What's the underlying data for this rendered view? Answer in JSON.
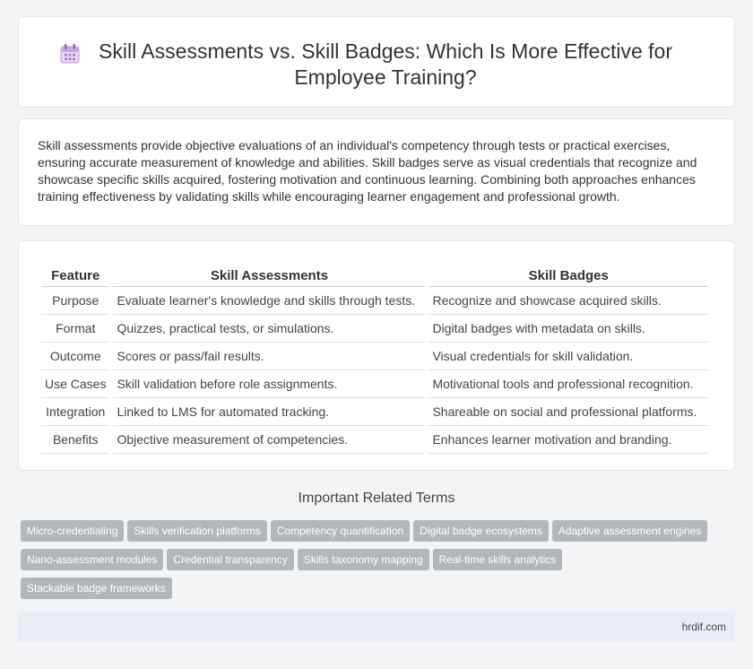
{
  "header": {
    "icon": "calendar-icon",
    "title": "Skill Assessments vs. Skill Badges: Which Is More Effective for Employee Training?"
  },
  "intro": {
    "text": "Skill assessments provide objective evaluations of an individual's competency through tests or practical exercises, ensuring accurate measurement of knowledge and abilities. Skill badges serve as visual credentials that recognize and showcase specific skills acquired, fostering motivation and continuous learning. Combining both approaches enhances training effectiveness by validating skills while encouraging learner engagement and professional growth."
  },
  "table": {
    "headers": [
      "Feature",
      "Skill Assessments",
      "Skill Badges"
    ],
    "rows": [
      [
        "Purpose",
        "Evaluate learner's knowledge and skills through tests.",
        "Recognize and showcase acquired skills."
      ],
      [
        "Format",
        "Quizzes, practical tests, or simulations.",
        "Digital badges with metadata on skills."
      ],
      [
        "Outcome",
        "Scores or pass/fail results.",
        "Visual credentials for skill validation."
      ],
      [
        "Use Cases",
        "Skill validation before role assignments.",
        "Motivational tools and professional recognition."
      ],
      [
        "Integration",
        "Linked to LMS for automated tracking.",
        "Shareable on social and professional platforms."
      ],
      [
        "Benefits",
        "Objective measurement of competencies.",
        "Enhances learner motivation and branding."
      ]
    ]
  },
  "related": {
    "title": "Important Related Terms",
    "tags": [
      "Micro-credentialing",
      "Skills verification platforms",
      "Competency quantification",
      "Digital badge ecosystems",
      "Adaptive assessment engines",
      "Nano-assessment modules",
      "Credential transparency",
      "Skills taxonomy mapping",
      "Real-time skills analytics",
      "Stackable badge frameworks"
    ]
  },
  "footer": {
    "site": "hrdif.com"
  }
}
